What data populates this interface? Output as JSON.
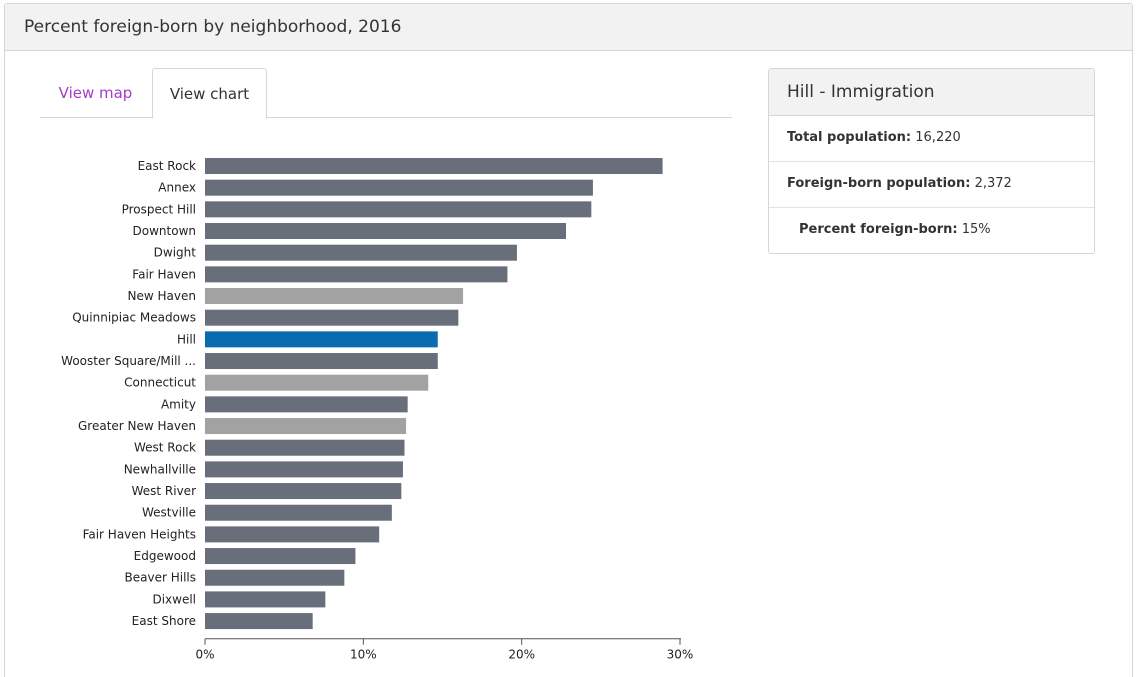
{
  "panel": {
    "title": "Percent foreign-born by neighborhood, 2016"
  },
  "tabs": {
    "map": "View map",
    "chart": "View chart"
  },
  "info": {
    "title": "Hill - Immigration",
    "rows": [
      {
        "label": "Total population:",
        "value": "16,220"
      },
      {
        "label": "Foreign-born population:",
        "value": "2,372"
      },
      {
        "label": "Percent foreign-born:",
        "value": "15%"
      }
    ]
  },
  "colors": {
    "neighborhood": "#686e7a",
    "reference": "#a2a2a2",
    "highlight": "#0b6bb0",
    "tab_link": "#a43cc6"
  },
  "chart_data": {
    "type": "bar",
    "orientation": "horizontal",
    "categories": [
      "East Rock",
      "Annex",
      "Prospect Hill",
      "Downtown",
      "Dwight",
      "Fair Haven",
      "New Haven",
      "Quinnipiac Meadows",
      "Hill",
      "Wooster Square/Mill ...",
      "Connecticut",
      "Amity",
      "Greater New Haven",
      "West Rock",
      "Newhallville",
      "West River",
      "Westville",
      "Fair Haven Heights",
      "Edgewood",
      "Beaver Hills",
      "Dixwell",
      "East Shore"
    ],
    "values": [
      28.9,
      24.5,
      24.4,
      22.8,
      19.7,
      19.1,
      16.3,
      16.0,
      14.7,
      14.7,
      14.1,
      12.8,
      12.7,
      12.6,
      12.5,
      12.4,
      11.8,
      11.0,
      9.5,
      8.8,
      7.6,
      6.8
    ],
    "kinds": [
      "n",
      "n",
      "n",
      "n",
      "n",
      "n",
      "r",
      "n",
      "h",
      "n",
      "r",
      "n",
      "r",
      "n",
      "n",
      "n",
      "n",
      "n",
      "n",
      "n",
      "n",
      "n"
    ],
    "xlim": [
      0,
      30
    ],
    "xticks": [
      "0%",
      "10%",
      "20%",
      "30%"
    ],
    "title": "",
    "xlabel": "",
    "ylabel": ""
  }
}
